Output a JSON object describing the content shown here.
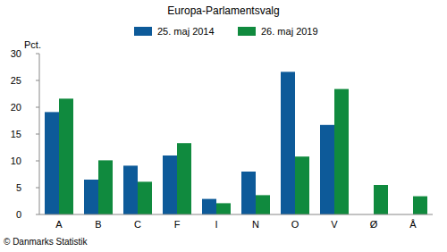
{
  "chart_data": {
    "type": "bar",
    "title": "Europa-Parlamentsvalg",
    "y_label": "Pct.",
    "source": "© Danmarks Statistik",
    "categories": [
      "A",
      "B",
      "C",
      "F",
      "I",
      "N",
      "O",
      "V",
      "Ø",
      "Å"
    ],
    "series": [
      {
        "name": "25. maj 2014",
        "color": "#0d5a99",
        "values": [
          19.1,
          6.5,
          9.1,
          11.0,
          2.9,
          8.0,
          26.6,
          16.7,
          null,
          null
        ]
      },
      {
        "name": "26. maj 2019",
        "color": "#108a3e",
        "values": [
          21.6,
          10.1,
          6.1,
          13.3,
          2.1,
          3.6,
          10.8,
          23.4,
          5.5,
          3.4
        ]
      }
    ],
    "ylim": [
      0,
      30
    ],
    "yticks": [
      0,
      5,
      10,
      15,
      20,
      25,
      30
    ],
    "grid": false,
    "legend": "top"
  }
}
